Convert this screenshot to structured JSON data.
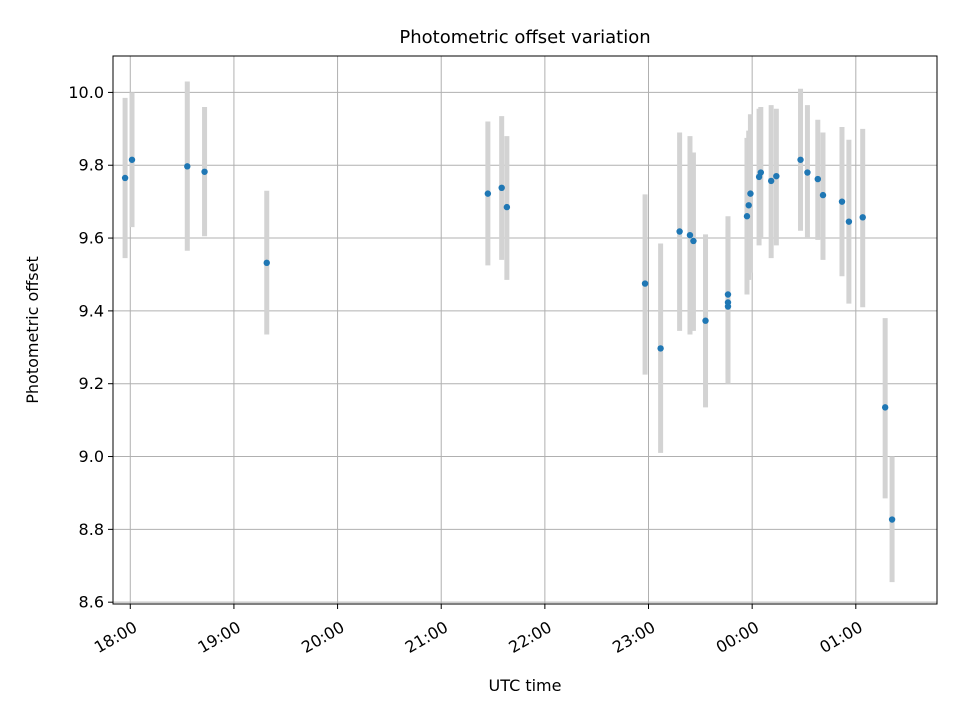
{
  "chart_data": {
    "type": "scatter",
    "title": "Photometric offset variation",
    "xlabel": "UTC time",
    "ylabel": "Photometric offset",
    "grid": true,
    "x_axis": {
      "kind": "time",
      "range": [
        "17:50",
        "01:47"
      ],
      "ticks": [
        "18:00",
        "19:00",
        "20:00",
        "21:00",
        "22:00",
        "23:00",
        "00:00",
        "01:00"
      ]
    },
    "y_axis": {
      "range": [
        8.595,
        10.1
      ],
      "ticks": [
        "8.6",
        "8.8",
        "9.0",
        "9.2",
        "9.4",
        "9.6",
        "9.8",
        "10.0"
      ]
    },
    "colors": {
      "point": "#1f77b4",
      "errorbar": "#d3d3d3",
      "grid": "#b0b0b0",
      "frame": "#000000"
    },
    "series": [
      {
        "points": [
          {
            "x": "17:57",
            "y": 9.765,
            "y_low": 9.545,
            "y_high": 9.985
          },
          {
            "x": "18:01",
            "y": 9.815,
            "y_low": 9.63,
            "y_high": 10.0
          },
          {
            "x": "18:33",
            "y": 9.797,
            "y_low": 9.565,
            "y_high": 10.03
          },
          {
            "x": "18:43",
            "y": 9.782,
            "y_low": 9.605,
            "y_high": 9.96
          },
          {
            "x": "19:19",
            "y": 9.532,
            "y_low": 9.335,
            "y_high": 9.73
          },
          {
            "x": "21:27",
            "y": 9.722,
            "y_low": 9.525,
            "y_high": 9.92
          },
          {
            "x": "21:35",
            "y": 9.738,
            "y_low": 9.54,
            "y_high": 9.935
          },
          {
            "x": "21:38",
            "y": 9.685,
            "y_low": 9.485,
            "y_high": 9.88
          },
          {
            "x": "22:58",
            "y": 9.475,
            "y_low": 9.225,
            "y_high": 9.72
          },
          {
            "x": "23:07",
            "y": 9.297,
            "y_low": 9.01,
            "y_high": 9.585
          },
          {
            "x": "23:18",
            "y": 9.618,
            "y_low": 9.345,
            "y_high": 9.89
          },
          {
            "x": "23:24",
            "y": 9.608,
            "y_low": 9.335,
            "y_high": 9.88
          },
          {
            "x": "23:26",
            "y": 9.592,
            "y_low": 9.345,
            "y_high": 9.835
          },
          {
            "x": "23:33",
            "y": 9.373,
            "y_low": 9.135,
            "y_high": 9.61
          },
          {
            "x": "23:46",
            "y": 9.412,
            "y_low": 9.2,
            "y_high": 9.625
          },
          {
            "x": "23:46",
            "y": 9.423,
            "y_low": 9.21,
            "y_high": 9.64
          },
          {
            "x": "23:46",
            "y": 9.445,
            "y_low": 9.225,
            "y_high": 9.66
          },
          {
            "x": "23:57",
            "y": 9.66,
            "y_low": 9.445,
            "y_high": 9.875
          },
          {
            "x": "23:58",
            "y": 9.69,
            "y_low": 9.485,
            "y_high": 9.895
          },
          {
            "x": "23:59",
            "y": 9.722,
            "y_low": 9.505,
            "y_high": 9.94
          },
          {
            "x": "00:04",
            "y": 9.768,
            "y_low": 9.58,
            "y_high": 9.955
          },
          {
            "x": "00:05",
            "y": 9.78,
            "y_low": 9.6,
            "y_high": 9.96
          },
          {
            "x": "00:11",
            "y": 9.757,
            "y_low": 9.545,
            "y_high": 9.965
          },
          {
            "x": "00:14",
            "y": 9.77,
            "y_low": 9.58,
            "y_high": 9.955
          },
          {
            "x": "00:28",
            "y": 9.815,
            "y_low": 9.62,
            "y_high": 10.01
          },
          {
            "x": "00:32",
            "y": 9.78,
            "y_low": 9.6,
            "y_high": 9.965
          },
          {
            "x": "00:38",
            "y": 9.762,
            "y_low": 9.595,
            "y_high": 9.925
          },
          {
            "x": "00:41",
            "y": 9.718,
            "y_low": 9.54,
            "y_high": 9.89
          },
          {
            "x": "00:52",
            "y": 9.7,
            "y_low": 9.495,
            "y_high": 9.905
          },
          {
            "x": "00:56",
            "y": 9.645,
            "y_low": 9.42,
            "y_high": 9.87
          },
          {
            "x": "01:04",
            "y": 9.657,
            "y_low": 9.41,
            "y_high": 9.9
          },
          {
            "x": "01:17",
            "y": 9.135,
            "y_low": 8.885,
            "y_high": 9.38
          },
          {
            "x": "01:21",
            "y": 8.827,
            "y_low": 8.655,
            "y_high": 9.0
          }
        ]
      }
    ]
  }
}
